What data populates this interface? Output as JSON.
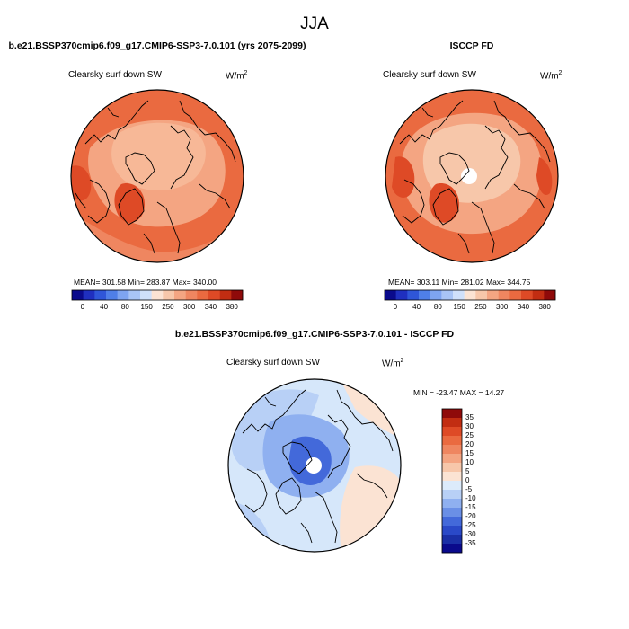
{
  "figure": {
    "season": "JJA"
  },
  "panels": [
    {
      "title": "b.e21.BSSP370cmip6.f09_g17.CMIP6-SSP3-7.0.101 (yrs 2075-2099)",
      "variable": "Clearsky surf down SW",
      "units_base": "W/m",
      "units_exp": "2",
      "stats": "MEAN= 301.58   Min= 283.87   Max= 340.00"
    },
    {
      "title": "ISCCP FD",
      "variable": "Clearsky surf down SW",
      "units_base": "W/m",
      "units_exp": "2",
      "stats": "MEAN= 303.11   Min= 281.02   Max= 344.75"
    },
    {
      "title": "b.e21.BSSP370cmip6.f09_g17.CMIP6-SSP3-7.0.101 - ISCCP FD",
      "variable": "Clearsky surf down SW",
      "units_base": "W/m",
      "units_exp": "2",
      "stats": "MIN = -23.47  MAX =  14.27"
    }
  ],
  "colorbars": {
    "absolute": {
      "orientation": "horizontal",
      "labels": [
        "0",
        "40",
        "80",
        "150",
        "250",
        "300",
        "340",
        "380"
      ],
      "colors": [
        "#0a0a8c",
        "#1f2fbf",
        "#2f56d8",
        "#4f7fe8",
        "#7ea4f0",
        "#a8c4f5",
        "#cfe0fa",
        "#fbe3d3",
        "#f7c7aa",
        "#f4a582",
        "#ef8660",
        "#ea6a40",
        "#de4a26",
        "#c22d12",
        "#8f0a0a"
      ]
    },
    "difference": {
      "orientation": "vertical",
      "labels": [
        "35",
        "30",
        "25",
        "20",
        "15",
        "10",
        "5",
        "0",
        "-5",
        "-10",
        "-15",
        "-20",
        "-25",
        "-30",
        "-35"
      ],
      "colors": [
        "#8f0a0a",
        "#c22d12",
        "#de4a26",
        "#ea6a40",
        "#ef8660",
        "#f4a582",
        "#f7c7aa",
        "#fbe3d3",
        "#dcebfb",
        "#b8d0f6",
        "#8fb0f0",
        "#6a8fe6",
        "#4369da",
        "#2a49c8",
        "#1a2fa6",
        "#0a0a8c"
      ]
    }
  }
}
